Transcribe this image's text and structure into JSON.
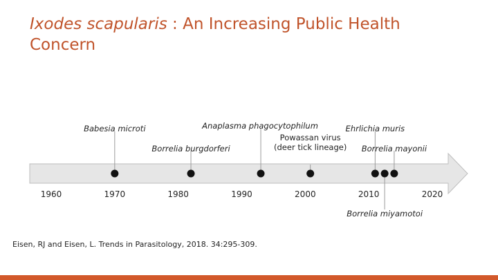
{
  "slide": {
    "title_italic": "Ixodes scapularis",
    "title_rest": " : An Increasing Public Health Concern",
    "citation": "Eisen, RJ and Eisen, L. Trends in Parasitology, 2018. 34:295-309."
  },
  "colors": {
    "title": "#c0532a",
    "bar": "#e6e6e6",
    "bar_border": "#bdbdbd",
    "dot": "#111111",
    "footer_bar": "#d2582a"
  },
  "timeline": {
    "year_range": [
      1960,
      2020
    ],
    "ticks": [
      "1960",
      "1970",
      "1980",
      "1990",
      "2000",
      "2010",
      "2020"
    ],
    "events": [
      {
        "year": 1970,
        "label": [
          "Babesia microti"
        ],
        "italic": true,
        "side": "top",
        "tier": 1
      },
      {
        "year": 1982,
        "label": [
          "Borrelia burgdorferi"
        ],
        "italic": true,
        "side": "top",
        "tier": 3
      },
      {
        "year": 1993,
        "label": [
          "Anaplasma phagocytophilum"
        ],
        "italic": true,
        "side": "top",
        "tier": 0
      },
      {
        "year": 2000.8,
        "label": [
          "Powassan virus",
          "(deer tick lineage)"
        ],
        "italic": false,
        "side": "top",
        "tier": 2
      },
      {
        "year": 2011,
        "label": [
          "Ehrlichia muris"
        ],
        "italic": true,
        "side": "top",
        "tier": 1
      },
      {
        "year": 2012.5,
        "label": [
          "Borrelia miyamotoi"
        ],
        "italic": true,
        "side": "bottom",
        "tier": 0
      },
      {
        "year": 2014,
        "label": [
          "Borrelia mayonii"
        ],
        "italic": true,
        "side": "top",
        "tier": 3
      }
    ]
  }
}
